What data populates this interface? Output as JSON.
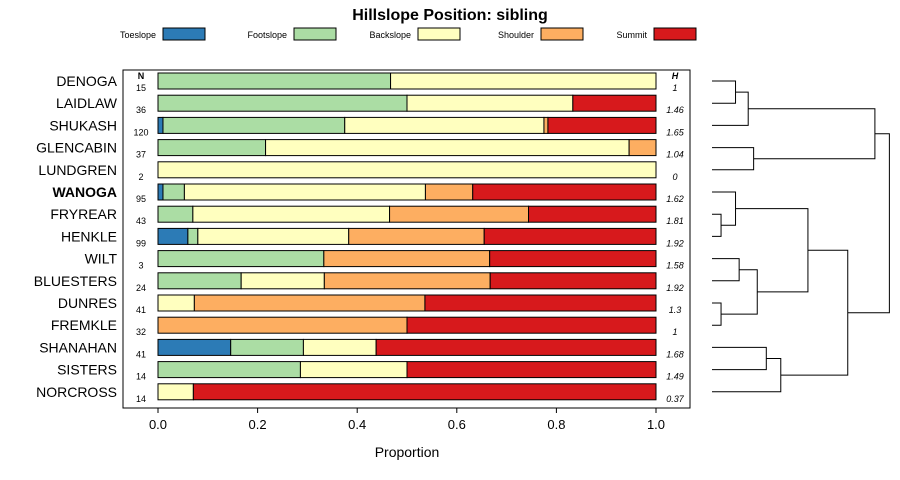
{
  "chart_data": {
    "type": "bar",
    "orientation": "horizontal-stacked",
    "title": "Hillslope Position: sibling",
    "xlabel": "Proportion",
    "xlim": [
      0,
      1
    ],
    "xticks": [
      "0.0",
      "0.2",
      "0.4",
      "0.6",
      "0.8",
      "1.0"
    ],
    "n_header": "N",
    "h_header": "H",
    "legend": {
      "placement": "top",
      "entries": [
        "Toeslope",
        "Footslope",
        "Backslope",
        "Shoulder",
        "Summit"
      ]
    },
    "colors": {
      "Toeslope": "#2c7bb6",
      "Footslope": "#abdda4",
      "Backslope": "#ffffbf",
      "Shoulder": "#fdae61",
      "Summit": "#d7191c"
    },
    "highlight": "WANOGA",
    "categories": [
      "DENOGA",
      "LAIDLAW",
      "SHUKASH",
      "GLENCABIN",
      "LUNDGREN",
      "WANOGA",
      "FRYREAR",
      "HENKLE",
      "WILT",
      "BLUESTERS",
      "DUNRES",
      "FREMKLE",
      "SHANAHAN",
      "SISTERS",
      "NORCROSS"
    ],
    "n": [
      "15",
      "36",
      "120",
      "37",
      "2",
      "95",
      "43",
      "99",
      "3",
      "24",
      "41",
      "32",
      "41",
      "14",
      "14"
    ],
    "h": [
      "1",
      "1.46",
      "1.65",
      "1.04",
      "0",
      "1.62",
      "1.81",
      "1.92",
      "1.58",
      "1.92",
      "1.3",
      "1",
      "1.68",
      "1.49",
      "0.37"
    ],
    "series": [
      {
        "name": "Toeslope",
        "values": [
          0,
          0,
          0.01,
          0,
          0,
          0.01,
          0,
          0.06,
          0,
          0,
          0,
          0,
          0.146,
          0,
          0
        ]
      },
      {
        "name": "Footslope",
        "values": [
          0.467,
          0.5,
          0.365,
          0.216,
          0,
          0.043,
          0.07,
          0.02,
          0.333,
          0.167,
          0,
          0,
          0.146,
          0.286,
          0
        ]
      },
      {
        "name": "Backslope",
        "values": [
          0.533,
          0.333,
          0.4,
          0.73,
          1,
          0.484,
          0.395,
          0.303,
          0,
          0.167,
          0.073,
          0,
          0.146,
          0.214,
          0.071
        ]
      },
      {
        "name": "Shoulder",
        "values": [
          0,
          0,
          0.008,
          0.054,
          0,
          0.095,
          0.279,
          0.272,
          0.333,
          0.333,
          0.463,
          0.5,
          0,
          0,
          0
        ]
      },
      {
        "name": "Summit",
        "values": [
          0,
          0.167,
          0.217,
          0,
          0,
          0.368,
          0.256,
          0.345,
          0.334,
          0.333,
          0.464,
          0.5,
          0.562,
          0.5,
          0.929
        ]
      }
    ],
    "dendrogram": {
      "merges": [
        [
          0,
          1,
          0.13
        ],
        [
          15,
          2,
          0.2
        ],
        [
          3,
          4,
          0.23
        ],
        [
          16,
          17,
          0.9
        ],
        [
          6,
          7,
          0.05
        ],
        [
          19,
          5,
          0.13
        ],
        [
          8,
          9,
          0.15
        ],
        [
          10,
          11,
          0.05
        ],
        [
          21,
          22,
          0.25
        ],
        [
          20,
          23,
          0.53
        ],
        [
          12,
          13,
          0.3
        ],
        [
          25,
          14,
          0.38
        ],
        [
          24,
          26,
          0.75
        ],
        [
          18,
          27,
          0.98
        ]
      ],
      "hmax": 1.0
    }
  }
}
